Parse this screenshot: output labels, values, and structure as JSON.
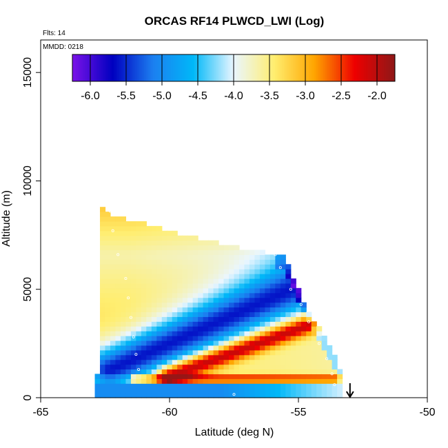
{
  "chart_data": {
    "type": "heatmap",
    "title": "ORCAS RF14 PLWCD_LWI (Log)",
    "subtitle_flights": "Flts: 14",
    "subtitle_date": "MMDD: 0218",
    "xlabel": "Latitude (deg N)",
    "ylabel": "Altitude (m)",
    "xlim": [
      -65,
      -50
    ],
    "ylim": [
      0,
      16500
    ],
    "x_ticks": [
      -65,
      -60,
      -55,
      -50
    ],
    "x_tick_labels": [
      "-65",
      "-60",
      "-55",
      "-50"
    ],
    "y_ticks": [
      0,
      5000,
      10000,
      15000
    ],
    "y_tick_labels": [
      "0",
      "5000",
      "10000",
      "15000"
    ],
    "colorbar": {
      "range": [
        -6.25,
        -1.75
      ],
      "ticks": [
        -6.0,
        -5.5,
        -5.0,
        -4.5,
        -4.0,
        -3.5,
        -3.0,
        -2.5,
        -2.0
      ],
      "tick_labels": [
        "-6.0",
        "-5.5",
        "-5.0",
        "-4.5",
        "-4.0",
        "-3.5",
        "-3.0",
        "-2.5",
        "-2.0"
      ],
      "stops": [
        "#7b12e8",
        "#0000c0",
        "#1c7ff0",
        "#00b8f8",
        "#eaf6ff",
        "#ffee70",
        "#ffa500",
        "#ee0000",
        "#8e1818"
      ]
    },
    "coverage_top_altitude_m": [
      [
        -62.6,
        8700
      ],
      [
        -62.2,
        8400
      ],
      [
        -61.5,
        8200
      ],
      [
        -60.5,
        7900
      ],
      [
        -59.5,
        7550
      ],
      [
        -58.5,
        7250
      ],
      [
        -57.5,
        7000
      ],
      [
        -56.5,
        6750
      ],
      [
        -55.6,
        6600
      ],
      [
        -55.2,
        5600
      ],
      [
        -54.8,
        4500
      ],
      [
        -54.4,
        3600
      ],
      [
        -54.0,
        2900
      ],
      [
        -53.6,
        1900
      ],
      [
        -53.3,
        1100
      ]
    ],
    "features": [
      {
        "name": "low-LWI band",
        "value": -5.6,
        "from_lat": -62.3,
        "from_alt": 1300,
        "to_lat": -55.3,
        "to_alt": 5000
      },
      {
        "name": "high-LWI band",
        "value": -2.1,
        "from_lat": -60.0,
        "from_alt": 1000,
        "to_lat": -54.5,
        "to_alt": 3400
      }
    ],
    "flight_track": [
      [
        -62.3,
        8600
      ],
      [
        -62.2,
        7700
      ],
      [
        -62.0,
        6600
      ],
      [
        -61.7,
        5500
      ],
      [
        -61.6,
        4600
      ],
      [
        -61.5,
        3700
      ],
      [
        -61.4,
        2800
      ],
      [
        -61.3,
        2000
      ],
      [
        -61.2,
        1300
      ],
      [
        -57.5,
        150
      ],
      [
        -55.9,
        6600
      ],
      [
        -55.7,
        6000
      ],
      [
        -55.3,
        5000
      ],
      [
        -54.9,
        4300
      ],
      [
        -54.6,
        3500
      ],
      [
        -54.2,
        2500
      ],
      [
        -53.9,
        1800
      ],
      [
        -53.7,
        1100
      ],
      [
        -53.6,
        600
      ]
    ],
    "marker_arrow_latitude": -53.0
  }
}
